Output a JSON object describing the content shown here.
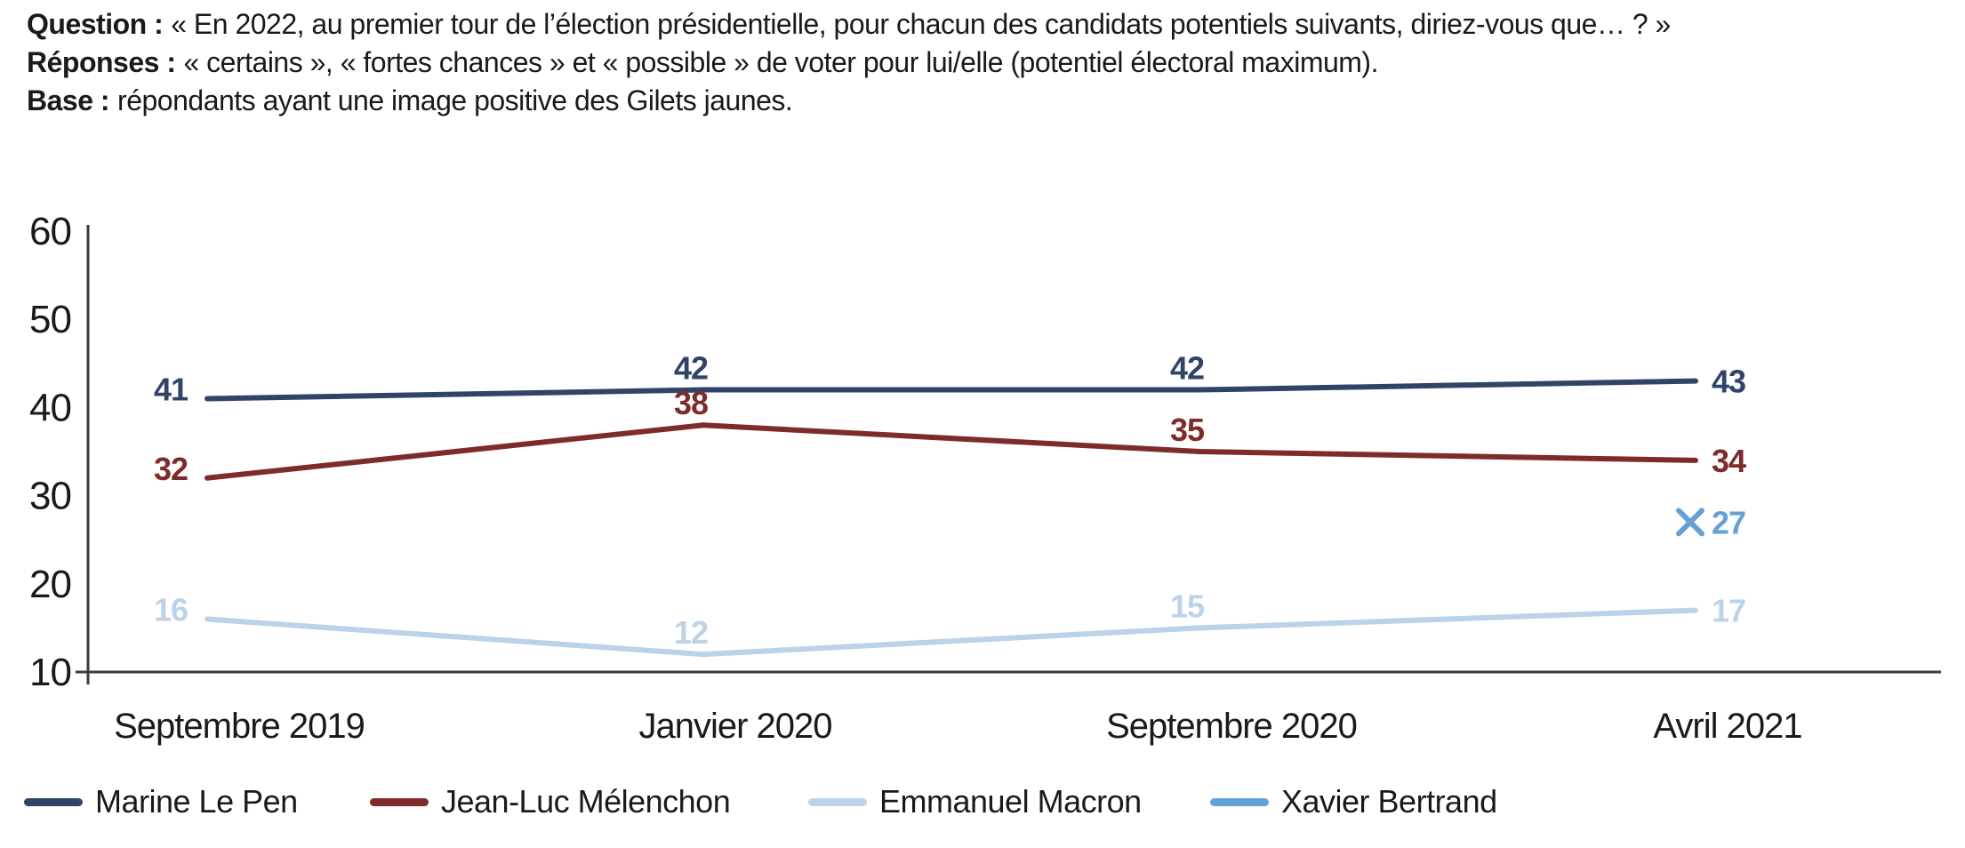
{
  "header": {
    "lines": [
      {
        "label": "Question :",
        "text": "« En 2022, au premier tour de l’élection présidentielle, pour chacun des candidats potentiels suivants, diriez-vous que… ? »"
      },
      {
        "label": "Réponses :",
        "text": "« certains », « fortes chances » et « possible » de voter pour lui/elle (potentiel électoral maximum)."
      },
      {
        "label": "Base :",
        "text": "répondants ayant une image positive des Gilets jaunes."
      }
    ]
  },
  "chart_data": {
    "type": "line",
    "categories": [
      "Septembre 2019",
      "Janvier 2020",
      "Septembre 2020",
      "Avril 2021"
    ],
    "series": [
      {
        "name": "Marine Le Pen",
        "color": "#314468",
        "values": [
          41,
          42,
          42,
          43
        ]
      },
      {
        "name": "Jean-Luc Mélenchon",
        "color": "#7E2B2B",
        "values": [
          32,
          38,
          35,
          34
        ]
      },
      {
        "name": "Emmanuel Macron",
        "color": "#BCD2E8",
        "values": [
          16,
          12,
          15,
          17
        ]
      },
      {
        "name": "Xavier Bertrand",
        "color": "#66A1D3",
        "values": [
          null,
          null,
          null,
          27
        ],
        "marker": "x"
      }
    ],
    "ylim": [
      10,
      60
    ],
    "yticks": [
      10,
      20,
      30,
      40,
      50,
      60
    ],
    "grid": false,
    "legend_position": "bottom",
    "axis_color": "#3b3b3b",
    "text_color": "#1a1a1a"
  }
}
